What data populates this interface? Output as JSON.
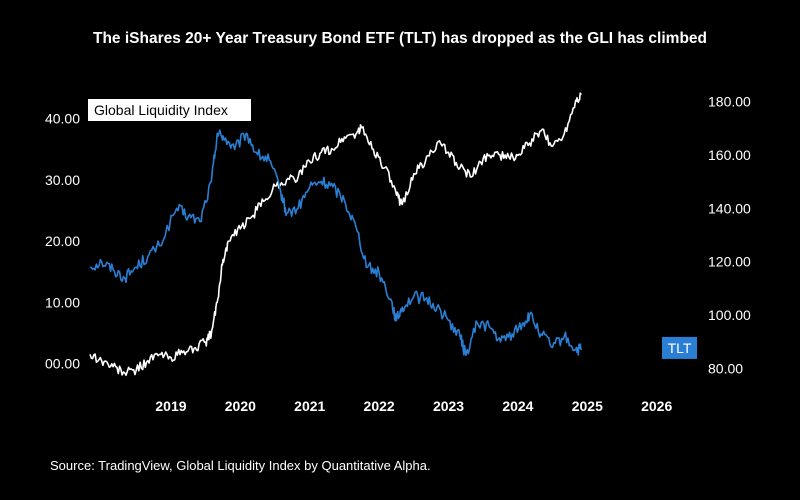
{
  "title": "The iShares 20+ Year Treasury Bond ETF (TLT) has dropped as the GLI has climbed",
  "source": "Source: TradingView, Global Liquidity Index by Quantitative Alpha.",
  "colors": {
    "background": "#000000",
    "gli": "#ffffff",
    "tlt": "#2a7fd4",
    "text": "#ffffff"
  },
  "chart_data": {
    "type": "line",
    "title": "The iShares 20+ Year Treasury Bond ETF (TLT) has dropped as the GLI has climbed",
    "grid": false,
    "x_ticks": [
      "2019",
      "2020",
      "2021",
      "2022",
      "2023",
      "2024",
      "2025",
      "2026"
    ],
    "xlim": [
      "2018-05",
      "2026-01"
    ],
    "y_left": {
      "ticks": [
        "00.00",
        "10.00",
        "20.00",
        "30.00",
        "40.00"
      ],
      "range": [
        -3,
        45
      ],
      "series": "Global Liquidity Index"
    },
    "y_right": {
      "ticks": [
        "80.00",
        "100.00",
        "120.00",
        "140.00",
        "160.00",
        "180.00"
      ],
      "range": [
        75,
        185
      ],
      "series": "TLT"
    },
    "series": [
      {
        "name": "Global Liquidity Index",
        "axis": "left",
        "color": "#ffffff",
        "label": "Global Liquidity Index",
        "points": [
          [
            "2018-05",
            1.5
          ],
          [
            "2018-07",
            0.5
          ],
          [
            "2018-09",
            -0.5
          ],
          [
            "2018-11",
            -1.5
          ],
          [
            "2019-01",
            -1.0
          ],
          [
            "2019-03",
            0.5
          ],
          [
            "2019-05",
            1.5
          ],
          [
            "2019-07",
            1.0
          ],
          [
            "2019-09",
            1.8
          ],
          [
            "2019-11",
            2.5
          ],
          [
            "2020-01",
            3.5
          ],
          [
            "2020-02",
            5.0
          ],
          [
            "2020-03",
            10.0
          ],
          [
            "2020-04",
            17.0
          ],
          [
            "2020-05",
            20.0
          ],
          [
            "2020-07",
            22.0
          ],
          [
            "2020-09",
            24.0
          ],
          [
            "2020-11",
            26.5
          ],
          [
            "2021-01",
            29.0
          ],
          [
            "2021-03",
            30.0
          ],
          [
            "2021-05",
            30.5
          ],
          [
            "2021-07",
            33.0
          ],
          [
            "2021-09",
            34.5
          ],
          [
            "2021-11",
            35.0
          ],
          [
            "2022-01",
            37.0
          ],
          [
            "2022-03",
            37.5
          ],
          [
            "2022-04",
            38.5
          ],
          [
            "2022-06",
            35.0
          ],
          [
            "2022-08",
            32.0
          ],
          [
            "2022-10",
            27.5
          ],
          [
            "2022-11",
            26.0
          ],
          [
            "2023-01",
            31.0
          ],
          [
            "2023-03",
            33.0
          ],
          [
            "2023-05",
            36.0
          ],
          [
            "2023-07",
            34.5
          ],
          [
            "2023-09",
            32.0
          ],
          [
            "2023-11",
            30.5
          ],
          [
            "2024-01",
            33.5
          ],
          [
            "2024-03",
            34.5
          ],
          [
            "2024-05",
            33.5
          ],
          [
            "2024-07",
            34.0
          ],
          [
            "2024-09",
            36.0
          ],
          [
            "2024-11",
            38.0
          ],
          [
            "2025-01",
            35.5
          ],
          [
            "2025-03",
            37.5
          ],
          [
            "2025-05",
            43.0
          ],
          [
            "2025-06",
            44.0
          ]
        ]
      },
      {
        "name": "TLT",
        "axis": "right",
        "color": "#2a7fd4",
        "label": "TLT",
        "points": [
          [
            "2018-05",
            118
          ],
          [
            "2018-07",
            120
          ],
          [
            "2018-09",
            117
          ],
          [
            "2018-11",
            114
          ],
          [
            "2019-01",
            118
          ],
          [
            "2019-03",
            122
          ],
          [
            "2019-05",
            126
          ],
          [
            "2019-08",
            140
          ],
          [
            "2019-10",
            137
          ],
          [
            "2019-12",
            135
          ],
          [
            "2020-02",
            150
          ],
          [
            "2020-03",
            168
          ],
          [
            "2020-04",
            167
          ],
          [
            "2020-06",
            162
          ],
          [
            "2020-08",
            168
          ],
          [
            "2020-10",
            160
          ],
          [
            "2020-12",
            158
          ],
          [
            "2021-02",
            146
          ],
          [
            "2021-03",
            138
          ],
          [
            "2021-05",
            140
          ],
          [
            "2021-07",
            148
          ],
          [
            "2021-09",
            150
          ],
          [
            "2021-11",
            148
          ],
          [
            "2022-01",
            143
          ],
          [
            "2022-03",
            133
          ],
          [
            "2022-05",
            118
          ],
          [
            "2022-07",
            116
          ],
          [
            "2022-09",
            106
          ],
          [
            "2022-10",
            98
          ],
          [
            "2022-11",
            103
          ],
          [
            "2023-01",
            107
          ],
          [
            "2023-03",
            106
          ],
          [
            "2023-05",
            103
          ],
          [
            "2023-07",
            98
          ],
          [
            "2023-09",
            92
          ],
          [
            "2023-10",
            85
          ],
          [
            "2023-12",
            97
          ],
          [
            "2024-02",
            96
          ],
          [
            "2024-04",
            90
          ],
          [
            "2024-06",
            93
          ],
          [
            "2024-08",
            97
          ],
          [
            "2024-09",
            100
          ],
          [
            "2024-11",
            93
          ],
          [
            "2025-01",
            88
          ],
          [
            "2025-03",
            92
          ],
          [
            "2025-05",
            87
          ],
          [
            "2025-06",
            87
          ]
        ]
      }
    ]
  }
}
